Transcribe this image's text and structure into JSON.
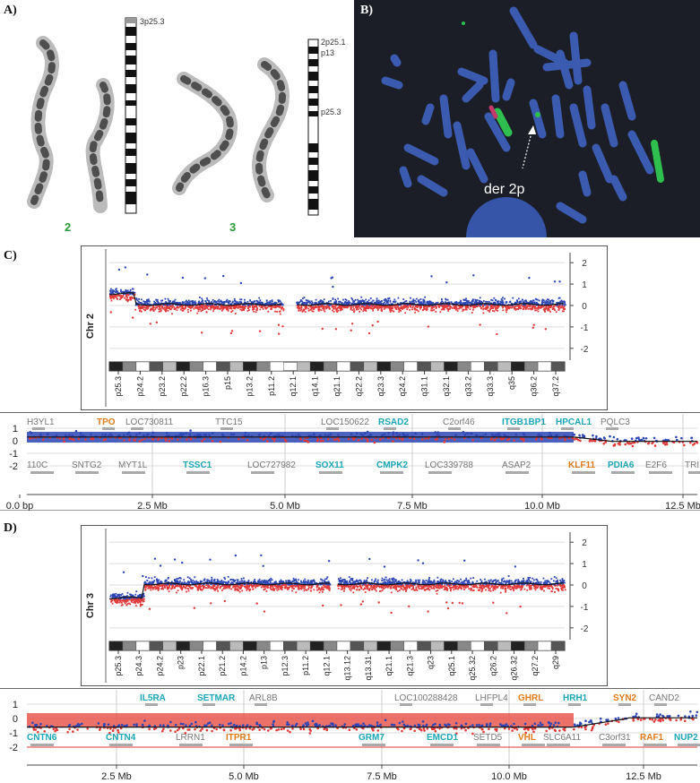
{
  "panels": {
    "A": {
      "label": "A)",
      "chr2_label": "2",
      "chr3_label": "3",
      "ideo_left_band": "3p25.3",
      "ideo_right_bands": [
        "2p25.1",
        "p13",
        "p25.3"
      ]
    },
    "B": {
      "label": "B)",
      "der_label": "der 2p"
    },
    "C": {
      "label": "C)",
      "chr_label": "Chr 2",
      "yticks": [
        "2",
        "1",
        "0",
        "-1",
        "-2"
      ],
      "bands": [
        "p25.3",
        "p24.2",
        "p23.2",
        "p22.2",
        "p16.3",
        "p15",
        "p13.2",
        "p11.2",
        "q12.1",
        "q14.1",
        "q21.1",
        "q22.2",
        "q23.3",
        "q24.2",
        "q31.1",
        "q32.1",
        "q33.2",
        "q33.3",
        "q35",
        "q36.2",
        "q37.2"
      ],
      "zoom": {
        "genes_top": [
          {
            "name": "H3YL1",
            "color": "#777777"
          },
          {
            "name": "TPO",
            "color": "#e07b1a"
          },
          {
            "name": "LOC730811",
            "color": "#777777"
          },
          {
            "name": "TTC15",
            "color": "#777777"
          },
          {
            "name": "LOC150622",
            "color": "#777777"
          },
          {
            "name": "RSAD2",
            "color": "#1aa6b7"
          },
          {
            "name": "C2orf46",
            "color": "#777777"
          },
          {
            "name": "ITGB1BP1",
            "color": "#1aa6b7"
          },
          {
            "name": "HPCAL1",
            "color": "#1aa6b7"
          },
          {
            "name": "PQLC3",
            "color": "#777777"
          }
        ],
        "genes_bottom": [
          {
            "name": "110C",
            "color": "#777777"
          },
          {
            "name": "SNTG2",
            "color": "#777777"
          },
          {
            "name": "MYT1L",
            "color": "#777777"
          },
          {
            "name": "TSSC1",
            "color": "#1aa6b7"
          },
          {
            "name": "LOC727982",
            "color": "#777777"
          },
          {
            "name": "SOX11",
            "color": "#1aa6b7"
          },
          {
            "name": "CMPK2",
            "color": "#1aa6b7"
          },
          {
            "name": "LOC339788",
            "color": "#777777"
          },
          {
            "name": "ASAP2",
            "color": "#777777"
          },
          {
            "name": "KLF11",
            "color": "#e07b1a"
          },
          {
            "name": "PDIA6",
            "color": "#1aa6b7"
          },
          {
            "name": "E2F6",
            "color": "#777777"
          },
          {
            "name": "TRI",
            "color": "#777777"
          }
        ],
        "yticks": [
          "1",
          "0",
          "-1",
          "-2"
        ],
        "xticks": [
          "0.0 bp",
          "2.5 Mb",
          "5.0 Mb",
          "7.5 Mb",
          "10.0 Mb",
          "12.5 Mb"
        ]
      }
    },
    "D": {
      "label": "D)",
      "chr_label": "Chr 3",
      "yticks": [
        "2",
        "1",
        "0",
        "-1",
        "-2"
      ],
      "bands": [
        "p25.3",
        "p24.3",
        "p24.2",
        "p23",
        "p22.1",
        "p21.2",
        "p14.2",
        "p13",
        "p12.3",
        "p11.2",
        "q12.1",
        "q13.12",
        "q13.31",
        "q21.1",
        "q21.3",
        "q23",
        "q25.1",
        "q25.32",
        "q26.2",
        "q26.32",
        "q27.2",
        "q29"
      ],
      "zoom": {
        "genes_top": [
          {
            "name": "IL5RA",
            "color": "#1aa6b7"
          },
          {
            "name": "SETMAR",
            "color": "#1aa6b7"
          },
          {
            "name": "ARL8B",
            "color": "#777777"
          },
          {
            "name": "LOC100288428",
            "color": "#777777"
          },
          {
            "name": "LHFPL4",
            "color": "#777777"
          },
          {
            "name": "GHRL",
            "color": "#e07b1a"
          },
          {
            "name": "HRH1",
            "color": "#1aa6b7"
          },
          {
            "name": "SYN2",
            "color": "#e07b1a"
          },
          {
            "name": "CAND2",
            "color": "#777777"
          }
        ],
        "genes_bottom": [
          {
            "name": "CNTN6",
            "color": "#1aa6b7"
          },
          {
            "name": "CNTN4",
            "color": "#1aa6b7"
          },
          {
            "name": "LRRN1",
            "color": "#777777"
          },
          {
            "name": "ITPR1",
            "color": "#e07b1a"
          },
          {
            "name": "GRM7",
            "color": "#1aa6b7"
          },
          {
            "name": "EMCD1",
            "color": "#1aa6b7"
          },
          {
            "name": "SETD5",
            "color": "#777777"
          },
          {
            "name": "VHL",
            "color": "#e07b1a"
          },
          {
            "name": "SLC6A11",
            "color": "#777777"
          },
          {
            "name": "C3orf31",
            "color": "#777777"
          },
          {
            "name": "RAF1",
            "color": "#e07b1a"
          },
          {
            "name": "NUP2",
            "color": "#1aa6b7"
          }
        ],
        "yticks": [
          "1",
          "0",
          "-1",
          "-2"
        ],
        "xticks": [
          "2.5 Mb",
          "5.0 Mb",
          "7.5 Mb",
          "10.0 Mb",
          "12.5 Mb"
        ]
      }
    }
  }
}
